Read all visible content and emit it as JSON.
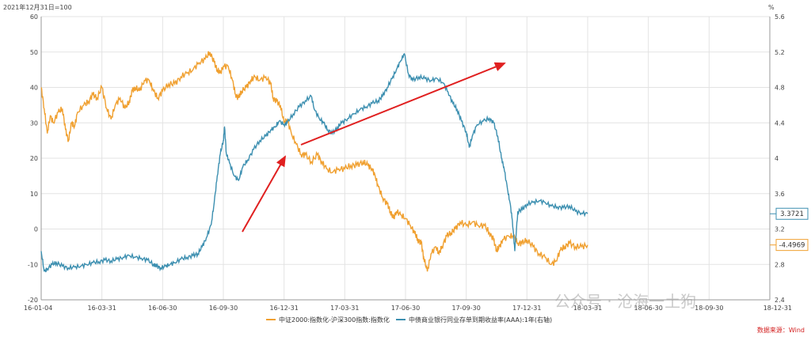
{
  "chart_data": {
    "type": "line",
    "top_left_label": "2021年12月31日=100",
    "top_right_label": "%",
    "left_axis": {
      "min": -20,
      "max": 60,
      "ticks": [
        -20,
        -10,
        0,
        10,
        20,
        30,
        40,
        50,
        60
      ]
    },
    "right_axis": {
      "min": 2.4,
      "max": 5.6,
      "ticks": [
        "2.4",
        "2.8",
        "3.2",
        "3.6",
        "4",
        "4.4",
        "4.8",
        "5.2",
        "5.6"
      ]
    },
    "x_ticks": [
      "16-01-04",
      "16-03-31",
      "16-06-30",
      "16-09-30",
      "16-12-31",
      "17-03-31",
      "17-06-30",
      "17-09-30",
      "17-12-31",
      "18-03-31",
      "18-06-30",
      "18-09-30",
      "18-12-31"
    ],
    "series": [
      {
        "name": "中证2000:指数化-沪深300指数:指数化",
        "axis": "left",
        "color": "#f0a030",
        "last_value_label": "-4.4969",
        "points": [
          [
            0,
            40
          ],
          [
            0.05,
            34
          ],
          [
            0.1,
            27
          ],
          [
            0.15,
            32
          ],
          [
            0.2,
            30
          ],
          [
            0.28,
            33
          ],
          [
            0.35,
            34
          ],
          [
            0.4,
            28
          ],
          [
            0.45,
            25
          ],
          [
            0.5,
            30
          ],
          [
            0.55,
            29
          ],
          [
            0.6,
            33
          ],
          [
            0.7,
            35
          ],
          [
            0.78,
            36
          ],
          [
            0.85,
            38
          ],
          [
            0.92,
            37
          ],
          [
            1,
            40
          ],
          [
            1.08,
            34
          ],
          [
            1.15,
            31
          ],
          [
            1.22,
            35
          ],
          [
            1.3,
            37
          ],
          [
            1.38,
            34
          ],
          [
            1.45,
            36
          ],
          [
            1.5,
            39
          ],
          [
            1.55,
            40
          ],
          [
            1.62,
            39
          ],
          [
            1.7,
            42
          ],
          [
            1.78,
            42
          ],
          [
            1.85,
            39
          ],
          [
            1.92,
            37
          ],
          [
            2,
            39
          ],
          [
            2.1,
            41
          ],
          [
            2.2,
            41
          ],
          [
            2.3,
            43
          ],
          [
            2.4,
            44
          ],
          [
            2.5,
            45
          ],
          [
            2.6,
            47
          ],
          [
            2.7,
            48
          ],
          [
            2.78,
            50
          ],
          [
            2.85,
            47
          ],
          [
            2.9,
            45
          ],
          [
            2.95,
            44
          ],
          [
            3,
            46
          ],
          [
            3.08,
            46
          ],
          [
            3.15,
            42
          ],
          [
            3.2,
            38
          ],
          [
            3.25,
            37
          ],
          [
            3.3,
            39
          ],
          [
            3.38,
            40
          ],
          [
            3.45,
            42
          ],
          [
            3.52,
            43
          ],
          [
            3.6,
            42
          ],
          [
            3.7,
            43
          ],
          [
            3.78,
            41
          ],
          [
            3.82,
            37
          ],
          [
            3.88,
            36
          ],
          [
            3.94,
            35
          ],
          [
            4,
            30
          ],
          [
            4.05,
            31
          ],
          [
            4.12,
            27
          ],
          [
            4.2,
            24
          ],
          [
            4.28,
            21
          ],
          [
            4.35,
            21
          ],
          [
            4.45,
            19
          ],
          [
            4.55,
            21
          ],
          [
            4.62,
            19
          ],
          [
            4.7,
            17
          ],
          [
            4.8,
            16
          ],
          [
            4.9,
            17
          ],
          [
            5,
            17
          ],
          [
            5.1,
            18
          ],
          [
            5.2,
            18
          ],
          [
            5.3,
            19
          ],
          [
            5.38,
            18
          ],
          [
            5.45,
            17
          ],
          [
            5.5,
            15
          ],
          [
            5.55,
            12
          ],
          [
            5.62,
            9
          ],
          [
            5.7,
            7
          ],
          [
            5.75,
            5
          ],
          [
            5.8,
            3
          ],
          [
            5.85,
            5
          ],
          [
            5.92,
            4
          ],
          [
            6,
            3
          ],
          [
            6.08,
            1
          ],
          [
            6.15,
            -1
          ],
          [
            6.2,
            -3
          ],
          [
            6.26,
            -4
          ],
          [
            6.3,
            -8
          ],
          [
            6.36,
            -12
          ],
          [
            6.42,
            -7
          ],
          [
            6.5,
            -5
          ],
          [
            6.55,
            -7
          ],
          [
            6.6,
            -5
          ],
          [
            6.68,
            -2
          ],
          [
            6.75,
            -1
          ],
          [
            6.82,
            0
          ],
          [
            6.9,
            2
          ],
          [
            7,
            1
          ],
          [
            7.1,
            2
          ],
          [
            7.2,
            1
          ],
          [
            7.3,
            1
          ],
          [
            7.38,
            -1
          ],
          [
            7.45,
            -3
          ],
          [
            7.5,
            -6
          ],
          [
            7.55,
            -5
          ],
          [
            7.6,
            -3
          ],
          [
            7.7,
            -2
          ],
          [
            7.78,
            -2
          ],
          [
            7.85,
            -4
          ],
          [
            7.92,
            -4
          ],
          [
            8,
            -3
          ],
          [
            8.1,
            -5
          ],
          [
            8.2,
            -7
          ],
          [
            8.3,
            -8
          ],
          [
            8.4,
            -10
          ],
          [
            8.48,
            -9
          ],
          [
            8.55,
            -6
          ],
          [
            8.62,
            -5
          ],
          [
            8.7,
            -4
          ],
          [
            8.8,
            -5
          ],
          [
            8.9,
            -5
          ],
          [
            9,
            -4.5
          ]
        ]
      },
      {
        "name": "中债商业银行同业存单到期收益率(AAA):1年(右轴)",
        "axis": "right",
        "color": "#3c8fb0",
        "last_value_label": "3.3721",
        "points": [
          [
            0,
            2.95
          ],
          [
            0.05,
            2.72
          ],
          [
            0.1,
            2.75
          ],
          [
            0.18,
            2.8
          ],
          [
            0.25,
            2.82
          ],
          [
            0.35,
            2.78
          ],
          [
            0.45,
            2.76
          ],
          [
            0.55,
            2.77
          ],
          [
            0.65,
            2.78
          ],
          [
            0.75,
            2.8
          ],
          [
            0.85,
            2.82
          ],
          [
            0.95,
            2.83
          ],
          [
            1.05,
            2.85
          ],
          [
            1.15,
            2.84
          ],
          [
            1.25,
            2.86
          ],
          [
            1.35,
            2.88
          ],
          [
            1.45,
            2.9
          ],
          [
            1.55,
            2.88
          ],
          [
            1.65,
            2.87
          ],
          [
            1.75,
            2.85
          ],
          [
            1.85,
            2.8
          ],
          [
            1.9,
            2.78
          ],
          [
            1.97,
            2.76
          ],
          [
            2.05,
            2.78
          ],
          [
            2.12,
            2.8
          ],
          [
            2.2,
            2.82
          ],
          [
            2.3,
            2.86
          ],
          [
            2.4,
            2.88
          ],
          [
            2.5,
            2.9
          ],
          [
            2.58,
            2.92
          ],
          [
            2.65,
            3.0
          ],
          [
            2.72,
            3.1
          ],
          [
            2.8,
            3.25
          ],
          [
            2.85,
            3.5
          ],
          [
            2.9,
            3.8
          ],
          [
            2.95,
            4.05
          ],
          [
            3.0,
            4.2
          ],
          [
            3.02,
            4.35
          ],
          [
            3.05,
            4.05
          ],
          [
            3.1,
            3.95
          ],
          [
            3.18,
            3.8
          ],
          [
            3.25,
            3.75
          ],
          [
            3.32,
            3.9
          ],
          [
            3.4,
            3.98
          ],
          [
            3.5,
            4.1
          ],
          [
            3.6,
            4.2
          ],
          [
            3.7,
            4.25
          ],
          [
            3.78,
            4.32
          ],
          [
            3.85,
            4.35
          ],
          [
            3.92,
            4.42
          ],
          [
            4.0,
            4.38
          ],
          [
            4.05,
            4.4
          ],
          [
            4.15,
            4.5
          ],
          [
            4.25,
            4.58
          ],
          [
            4.35,
            4.65
          ],
          [
            4.45,
            4.7
          ],
          [
            4.5,
            4.55
          ],
          [
            4.58,
            4.45
          ],
          [
            4.65,
            4.4
          ],
          [
            4.72,
            4.32
          ],
          [
            4.8,
            4.28
          ],
          [
            4.88,
            4.35
          ],
          [
            4.95,
            4.4
          ],
          [
            5.05,
            4.45
          ],
          [
            5.15,
            4.5
          ],
          [
            5.25,
            4.55
          ],
          [
            5.35,
            4.58
          ],
          [
            5.45,
            4.62
          ],
          [
            5.55,
            4.65
          ],
          [
            5.62,
            4.7
          ],
          [
            5.7,
            4.8
          ],
          [
            5.78,
            4.9
          ],
          [
            5.85,
            5.0
          ],
          [
            5.92,
            5.1
          ],
          [
            5.98,
            5.18
          ],
          [
            6.05,
            4.95
          ],
          [
            6.12,
            4.88
          ],
          [
            6.22,
            4.92
          ],
          [
            6.32,
            4.9
          ],
          [
            6.42,
            4.88
          ],
          [
            6.52,
            4.9
          ],
          [
            6.62,
            4.85
          ],
          [
            6.7,
            4.75
          ],
          [
            6.78,
            4.62
          ],
          [
            6.85,
            4.55
          ],
          [
            6.92,
            4.42
          ],
          [
            7.0,
            4.3
          ],
          [
            7.05,
            4.12
          ],
          [
            7.1,
            4.25
          ],
          [
            7.18,
            4.38
          ],
          [
            7.28,
            4.42
          ],
          [
            7.38,
            4.45
          ],
          [
            7.45,
            4.4
          ],
          [
            7.52,
            4.25
          ],
          [
            7.58,
            4.0
          ],
          [
            7.62,
            3.9
          ],
          [
            7.68,
            3.65
          ],
          [
            7.72,
            3.5
          ],
          [
            7.76,
            3.3
          ],
          [
            7.8,
            2.95
          ],
          [
            7.85,
            3.4
          ],
          [
            7.92,
            3.42
          ],
          [
            8.0,
            3.48
          ],
          [
            8.1,
            3.5
          ],
          [
            8.2,
            3.52
          ],
          [
            8.3,
            3.5
          ],
          [
            8.4,
            3.46
          ],
          [
            8.5,
            3.45
          ],
          [
            8.6,
            3.44
          ],
          [
            8.7,
            3.46
          ],
          [
            8.8,
            3.4
          ],
          [
            8.9,
            3.38
          ],
          [
            9.0,
            3.3721
          ]
        ]
      }
    ],
    "annotations": {
      "arrow_color": "#e02020"
    },
    "source_text": "数据来源：Wind",
    "watermark_text": "公众号 · 沧海一土狗"
  }
}
